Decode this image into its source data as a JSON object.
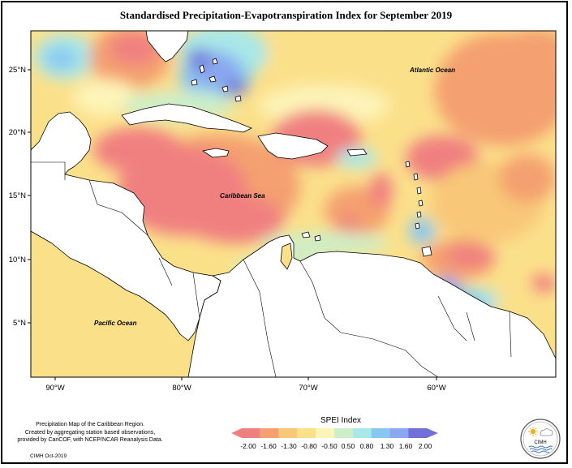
{
  "title": "Standardised Precipitation-Evapotranspiration Index for September 2019",
  "map": {
    "ocean_labels": {
      "atlantic": "Atlantic Ocean",
      "caribbean": "Caribbean Sea",
      "pacific": "Pacific Ocean"
    },
    "lat_ticks": [
      "25°N",
      "20°N",
      "15°N",
      "10°N",
      "5°N"
    ],
    "lon_ticks": [
      "90°W",
      "80°W",
      "70°W",
      "60°W"
    ],
    "extent": {
      "lon": [
        -92,
        -50
      ],
      "lat": [
        1.5,
        28
      ]
    }
  },
  "legend": {
    "title": "SPEI Index",
    "tick_labels": [
      "-2.00",
      "-1.60",
      "-1.30",
      "-0.80",
      "-0.50",
      "0.50",
      "0.80",
      "1.30",
      "1.60",
      "2.00"
    ],
    "colors": [
      "#f08080",
      "#f4a070",
      "#f8c878",
      "#fbe08a",
      "#fdf4b8",
      "#cdeec8",
      "#a8e8e8",
      "#88c8f0",
      "#8aa8f0",
      "#7070d8"
    ]
  },
  "footnote": {
    "line1": "Precipitation Map of the Caribbean Region.",
    "line2": "Created by aggregating station based observations,",
    "line3": "provided by CariCOF, with NCEP/NCAR Reanalysis Data.",
    "credit": "CIMH Oct-2019"
  },
  "logo": {
    "text": "CIMH"
  }
}
